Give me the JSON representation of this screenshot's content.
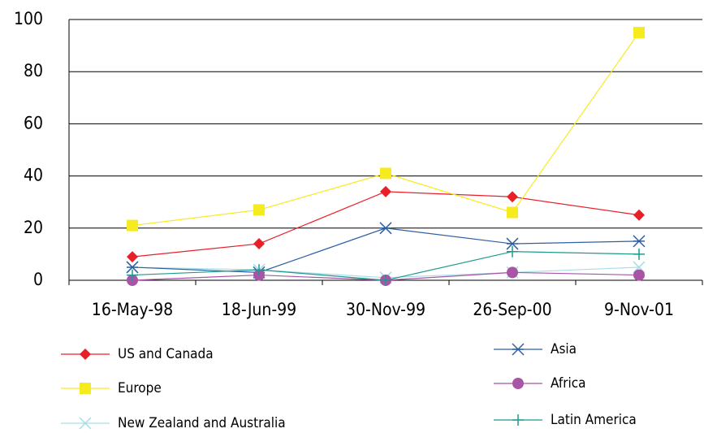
{
  "chart_data": {
    "type": "line",
    "categories": [
      "16-May-98",
      "18-Jun-99",
      "30-Nov-99",
      "26-Sep-00",
      "9-Nov-01"
    ],
    "series": [
      {
        "name": "US and Canada",
        "color": "#e8202a",
        "marker": "diamond",
        "values": [
          9,
          14,
          34,
          32,
          25
        ]
      },
      {
        "name": "Europe",
        "color": "#f5eb1e",
        "marker": "square",
        "values": [
          21,
          27,
          41,
          26,
          95
        ]
      },
      {
        "name": "New Zealand and Australia",
        "color": "#a6dde6",
        "marker": "x",
        "values": [
          5,
          4,
          1,
          3,
          5
        ]
      },
      {
        "name": "Asia",
        "color": "#2e5fa3",
        "marker": "star",
        "values": [
          5,
          3,
          20,
          14,
          15
        ]
      },
      {
        "name": "Africa",
        "color": "#a855a8",
        "marker": "circle",
        "values": [
          0,
          2,
          0,
          3,
          2
        ]
      },
      {
        "name": "Latin America",
        "color": "#1f9a8e",
        "marker": "plus",
        "values": [
          2,
          4,
          0,
          11,
          10
        ]
      }
    ],
    "ylim": [
      0,
      100
    ],
    "yticks": [
      0,
      20,
      40,
      60,
      80,
      100
    ],
    "grid": true,
    "legend": "bottom"
  }
}
